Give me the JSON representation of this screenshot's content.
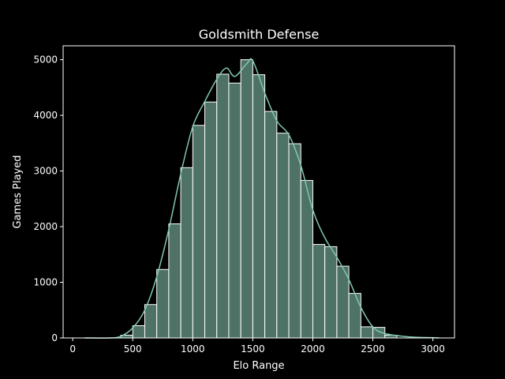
{
  "chart_data": {
    "type": "bar",
    "title": "Goldsmith Defense",
    "xlabel": "Elo Range",
    "ylabel": "Games Played",
    "xlim": [
      -80,
      3180
    ],
    "ylim": [
      0,
      5250
    ],
    "xticks": [
      0,
      500,
      1000,
      1500,
      2000,
      2500,
      3000
    ],
    "yticks": [
      0,
      1000,
      2000,
      3000,
      4000,
      5000
    ],
    "grid": false,
    "legend": "none",
    "bar_color": "#4e7266",
    "bar_edge_color": "#ffffff",
    "kde_color": "#7fc7b3",
    "background": "#000000",
    "bin_edges": [
      400,
      500,
      600,
      700,
      800,
      900,
      1000,
      1100,
      1200,
      1300,
      1400,
      1500,
      1600,
      1700,
      1800,
      1900,
      2000,
      2100,
      2200,
      2300,
      2400,
      2500,
      2600,
      2700
    ],
    "values": [
      50,
      220,
      600,
      1230,
      2050,
      3060,
      3820,
      4240,
      4740,
      4580,
      5000,
      4730,
      4070,
      3680,
      3490,
      2830,
      1680,
      1640,
      1290,
      800,
      200,
      190,
      50
    ],
    "kde": {
      "x": [
        100,
        300,
        400,
        500,
        600,
        700,
        800,
        900,
        1000,
        1100,
        1200,
        1280,
        1350,
        1450,
        1500,
        1600,
        1700,
        1800,
        1900,
        2000,
        2100,
        2200,
        2300,
        2400,
        2500,
        2600,
        2800,
        3000,
        3050
      ],
      "y": [
        0,
        0,
        30,
        180,
        500,
        1100,
        1950,
        2950,
        3800,
        4250,
        4650,
        4850,
        4700,
        4930,
        4980,
        4400,
        3900,
        3650,
        3100,
        2300,
        1800,
        1450,
        1050,
        550,
        200,
        80,
        20,
        5,
        0
      ]
    }
  }
}
